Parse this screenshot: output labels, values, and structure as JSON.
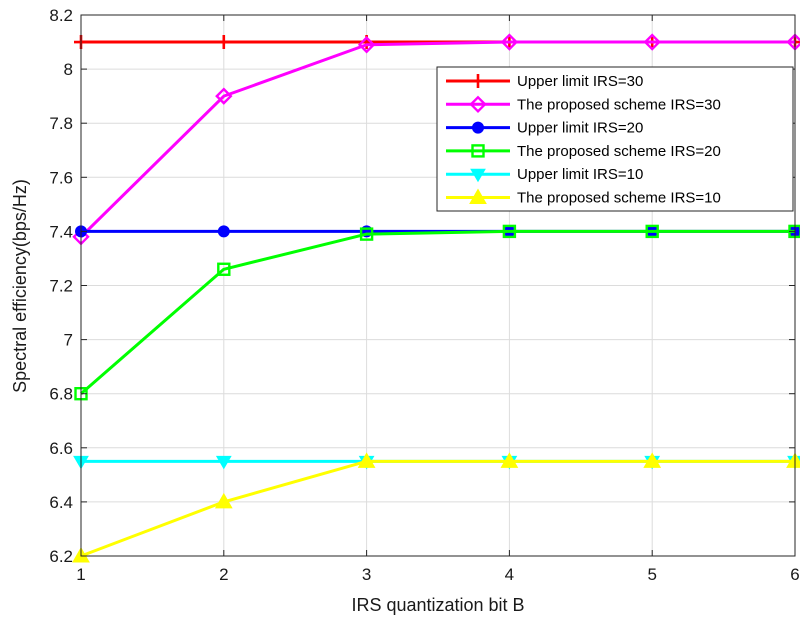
{
  "chart_data": {
    "type": "line",
    "xlabel": "IRS quantization bit B",
    "ylabel": "Spectral efficiency(bps/Hz)",
    "xlim": [
      1,
      6
    ],
    "ylim": [
      6.2,
      8.2
    ],
    "xticks": [
      1,
      2,
      3,
      4,
      5,
      6
    ],
    "yticks": [
      6.2,
      6.4,
      6.6,
      6.8,
      7,
      7.2,
      7.4,
      7.6,
      7.8,
      8,
      8.2
    ],
    "grid": true,
    "legend_position": "top-right",
    "x": [
      1,
      2,
      3,
      4,
      5,
      6
    ],
    "series": [
      {
        "name": "Upper limit IRS=30",
        "values": [
          8.1,
          8.1,
          8.1,
          8.1,
          8.1,
          8.1
        ],
        "color": "#ff0000",
        "marker": "plus"
      },
      {
        "name": "The proposed scheme IRS=30",
        "values": [
          7.38,
          7.9,
          8.09,
          8.1,
          8.1,
          8.1
        ],
        "color": "#ff00ff",
        "marker": "diamond"
      },
      {
        "name": "Upper limit IRS=20",
        "values": [
          7.4,
          7.4,
          7.4,
          7.4,
          7.4,
          7.4
        ],
        "color": "#0000ff",
        "marker": "circle"
      },
      {
        "name": "The proposed scheme IRS=20",
        "values": [
          6.8,
          7.26,
          7.39,
          7.4,
          7.4,
          7.4
        ],
        "color": "#00ff00",
        "marker": "square"
      },
      {
        "name": "Upper limit IRS=10",
        "values": [
          6.55,
          6.55,
          6.55,
          6.55,
          6.55,
          6.55
        ],
        "color": "#00ffff",
        "marker": "triangle-down"
      },
      {
        "name": "The proposed scheme IRS=10",
        "values": [
          6.2,
          6.4,
          6.55,
          6.55,
          6.55,
          6.55
        ],
        "color": "#ffff00",
        "marker": "triangle-up"
      }
    ]
  }
}
